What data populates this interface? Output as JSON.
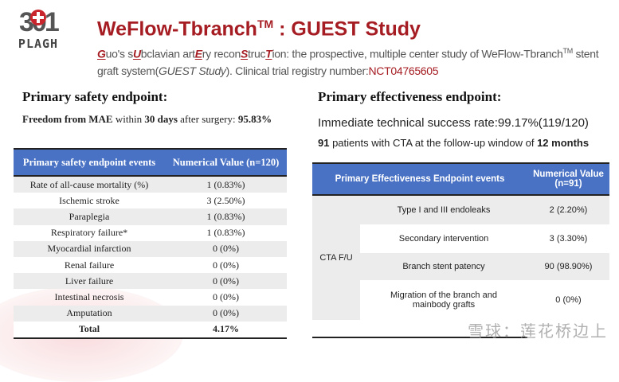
{
  "logo": {
    "number": "301",
    "text": "PLAGH"
  },
  "title": {
    "main": "WeFlow-Tbranch",
    "tm": "TM",
    "rest": " : GUEST Study"
  },
  "subtitle": {
    "parts": [
      "G",
      "uo's s",
      "U",
      "bclavian art",
      "E",
      "ry recon",
      "S",
      "truc",
      "T",
      "ion: the prospective, multiple center study of WeFlow-Tbranch"
    ],
    "tm": "TM",
    "after": " stent graft system(",
    "italic": "GUEST Study",
    "after2": "). Clinical trial registry number:",
    "nct": "NCT04765605"
  },
  "left": {
    "heading": "Primary safety endpoint:",
    "sub": {
      "a": "Freedom from MAE",
      "b": " within ",
      "c": "30 days",
      "d": " after surgery: ",
      "e": "95.83%"
    },
    "table": {
      "headers": [
        "Primary safety endpoint events",
        "Numerical Value (n=120)"
      ],
      "rows": [
        [
          "Rate of all-cause mortality (%)",
          "1 (0.83%)"
        ],
        [
          "Ischemic stroke",
          "3 (2.50%)"
        ],
        [
          "Paraplegia",
          "1 (0.83%)"
        ],
        [
          "Respiratory failure*",
          "1 (0.83%)"
        ],
        [
          "Myocardial infarction",
          "0 (0%)"
        ],
        [
          "Renal failure",
          "0 (0%)"
        ],
        [
          "Liver failure",
          "0 (0%)"
        ],
        [
          "Intestinal necrosis",
          "0 (0%)"
        ],
        [
          "Amputation",
          "0 (0%)"
        ]
      ],
      "total": [
        "Total",
        "4.17%"
      ]
    }
  },
  "right": {
    "heading": "Primary effectiveness endpoint:",
    "sub1": "Immediate technical success rate:99.17%(119/120)",
    "sub2": {
      "a": "91",
      "b": " patients with CTA  at the follow-up window of ",
      "c": "12 months"
    },
    "table": {
      "headers": [
        "Primary Effectiveness Endpoint events",
        "Numerical Value (n=91)"
      ],
      "group": "CTA F/U",
      "rows": [
        [
          "Type I and III endoleaks",
          "2 (2.20%)"
        ],
        [
          "Secondary intervention",
          "3 (3.30%)"
        ],
        [
          "Branch stent patency",
          "90 (98.90%)"
        ],
        [
          "Migration of the branch and mainbody grafts",
          "0 (0%)"
        ]
      ]
    }
  },
  "watermark": "雪球：莲花桥边上"
}
